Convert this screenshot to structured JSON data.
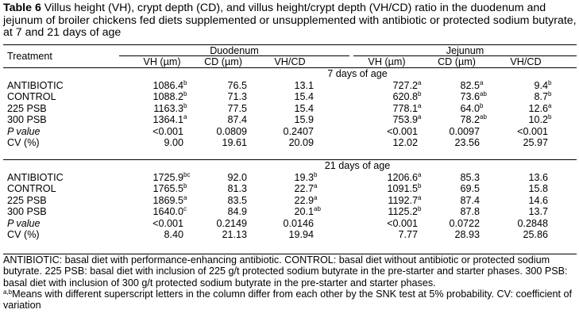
{
  "caption": {
    "label": "Table 6",
    "text": " Villus height (VH), crypt depth (CD), and villus height/crypt depth (VH/CD) ratio in the duodenum and jejunum of broiler chickens fed diets supplemented or unsupplemented with antibiotic or protected sodium butyrate, at 7 and 21 days of age"
  },
  "header": {
    "treatment": "Treatment",
    "duodenum": "Duodenum",
    "jejunum": "Jejunum",
    "cols": [
      "VH (µm)",
      "CD (µm)",
      "VH/CD",
      "VH (µm)",
      "CD (µm)",
      "VH/CD"
    ]
  },
  "sections": [
    {
      "title": "7 days of age",
      "rows": [
        {
          "label": "ANTIBIOTIC",
          "cells": [
            [
              "1086.4",
              "b"
            ],
            [
              "76.5",
              ""
            ],
            [
              "13.1",
              ""
            ],
            [
              "727.2",
              "a"
            ],
            [
              "82.5",
              "a"
            ],
            [
              "9.4",
              "b"
            ]
          ]
        },
        {
          "label": "CONTROL",
          "cells": [
            [
              "1088.2",
              "b"
            ],
            [
              "71.3",
              ""
            ],
            [
              "15.4",
              ""
            ],
            [
              "620.8",
              "b"
            ],
            [
              "73.6",
              "ab"
            ],
            [
              "8.7",
              "b"
            ]
          ]
        },
        {
          "label": "225 PSB",
          "cells": [
            [
              "1163.3",
              "b"
            ],
            [
              "77.5",
              ""
            ],
            [
              "15.4",
              ""
            ],
            [
              "778.1",
              "a"
            ],
            [
              "64.0",
              "b"
            ],
            [
              "12.6",
              "a"
            ]
          ]
        },
        {
          "label": "300 PSB",
          "cells": [
            [
              "1364.1",
              "a"
            ],
            [
              "87.4",
              ""
            ],
            [
              "15.9",
              ""
            ],
            [
              "753.9",
              "a"
            ],
            [
              "78.2",
              "ab"
            ],
            [
              "10.2",
              "b"
            ]
          ]
        },
        {
          "label": "P value",
          "italic": true,
          "cells": [
            [
              "<0.001",
              ""
            ],
            [
              "0.0809",
              ""
            ],
            [
              "0.2407",
              ""
            ],
            [
              "<0.001",
              ""
            ],
            [
              "0.0097",
              ""
            ],
            [
              "<0.001",
              ""
            ]
          ]
        },
        {
          "label": "CV (%)",
          "cells": [
            [
              "9.00",
              ""
            ],
            [
              "19.61",
              ""
            ],
            [
              "20.09",
              ""
            ],
            [
              "12.02",
              ""
            ],
            [
              "23.56",
              ""
            ],
            [
              "25.97",
              ""
            ]
          ]
        }
      ]
    },
    {
      "title": "21 days of age",
      "rows": [
        {
          "label": "ANTIBIOTIC",
          "cells": [
            [
              "1725.9",
              "bc"
            ],
            [
              "92.0",
              ""
            ],
            [
              "19.3",
              "b"
            ],
            [
              "1206.6",
              "a"
            ],
            [
              "85.3",
              ""
            ],
            [
              "13.6",
              ""
            ]
          ]
        },
        {
          "label": "CONTROL",
          "cells": [
            [
              "1765.5",
              "b"
            ],
            [
              "81.3",
              ""
            ],
            [
              "22.7",
              "a"
            ],
            [
              "1091.5",
              "b"
            ],
            [
              "69.5",
              ""
            ],
            [
              "15.8",
              ""
            ]
          ]
        },
        {
          "label": "225 PSB",
          "cells": [
            [
              "1869.5",
              "a"
            ],
            [
              "83.5",
              ""
            ],
            [
              "22.9",
              "a"
            ],
            [
              "1192.7",
              "a"
            ],
            [
              "87.4",
              ""
            ],
            [
              "14.6",
              ""
            ]
          ]
        },
        {
          "label": "300 PSB",
          "cells": [
            [
              "1640.0",
              "c"
            ],
            [
              "84.9",
              ""
            ],
            [
              "20.1",
              "ab"
            ],
            [
              "1125.2",
              "b"
            ],
            [
              "87.8",
              ""
            ],
            [
              "13.7",
              ""
            ]
          ]
        },
        {
          "label": "P value",
          "italic": true,
          "cells": [
            [
              "<0.001",
              ""
            ],
            [
              "0.2149",
              ""
            ],
            [
              "0.0146",
              ""
            ],
            [
              "<0.001",
              ""
            ],
            [
              "0.0722",
              ""
            ],
            [
              "0.2848",
              ""
            ]
          ]
        },
        {
          "label": "CV (%)",
          "cells": [
            [
              "8.40",
              ""
            ],
            [
              "21.13",
              ""
            ],
            [
              "19.94",
              ""
            ],
            [
              "7.77",
              ""
            ],
            [
              "28.93",
              ""
            ],
            [
              "25.86",
              ""
            ]
          ]
        }
      ]
    }
  ],
  "footer": {
    "note1": "ANTIBIOTIC: basal diet with performance-enhancing antibiotic. CONTROL: basal diet without antibiotic or protected sodium butyrate. 225 PSB: basal diet with inclusion of 225 g/t protected sodium butyrate in the pre-starter and starter phases. 300 PSB: basal diet with inclusion of 300 g/t protected sodium butyrate in the pre-starter and starter phases.",
    "superscript": "a,b",
    "note2": "Means with different superscript letters in the column differ from each other by the SNK test at 5% probability. CV: coefficient of variation"
  }
}
